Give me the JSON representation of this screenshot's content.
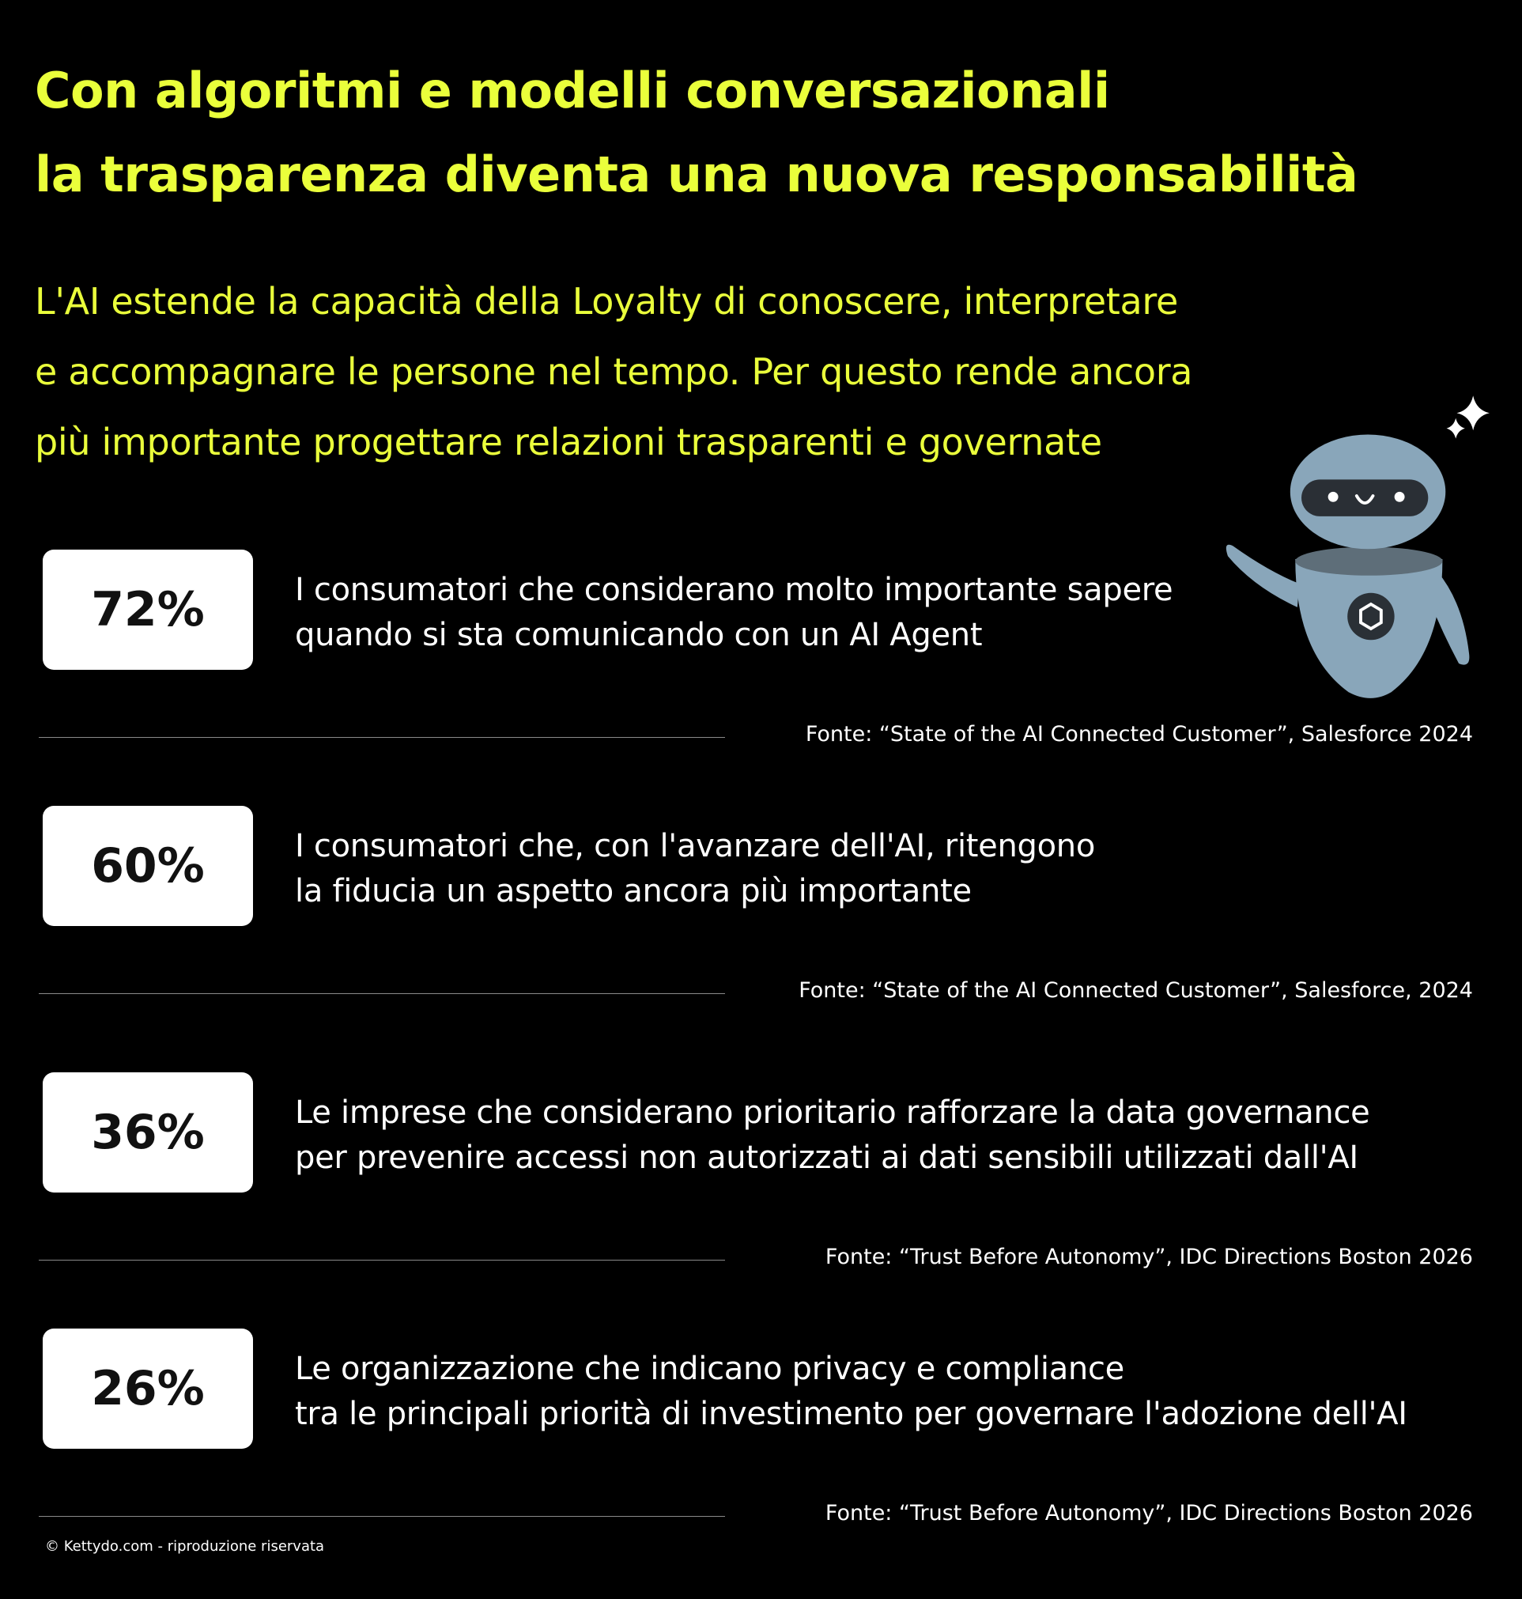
{
  "header": {
    "title": [
      "Con algoritmi e modelli conversazionali",
      "la trasparenza diventa una nuova responsabilità"
    ],
    "subtitle": [
      "L'AI estende la capacità della Loyalty di conoscere, interpretare",
      "e accompagnare le persone nel tempo. Per questo rende ancora",
      "più importante progettare relazioni trasparenti e governate"
    ]
  },
  "stats": [
    {
      "value": "72%",
      "text": [
        "I consumatori che considerano molto importante sapere",
        "quando si sta comunicando con un AI Agent"
      ],
      "source": "Fonte: “State of the AI Connected Customer”, Salesforce 2024"
    },
    {
      "value": "60%",
      "text": [
        "I consumatori che, con l'avanzare dell'AI, ritengono",
        "la fiducia un aspetto ancora più importante"
      ],
      "source": "Fonte: “State of the AI Connected Customer”, Salesforce, 2024"
    },
    {
      "value": "36%",
      "text": [
        "Le imprese che considerano prioritario rafforzare la data governance",
        "per prevenire accessi non autorizzati ai dati sensibili utilizzati dall'AI"
      ],
      "source": "Fonte: “Trust Before Autonomy”, IDC Directions Boston 2026"
    },
    {
      "value": "26%",
      "text": [
        "Le organizzazione che indicano privacy e compliance",
        "tra le principali priorità di investimento per governare l'adozione dell'AI"
      ],
      "source": "Fonte: “Trust Before Autonomy”, IDC Directions Boston 2026"
    }
  ],
  "footer": "© Kettydo.com - riproduzione riservata"
}
